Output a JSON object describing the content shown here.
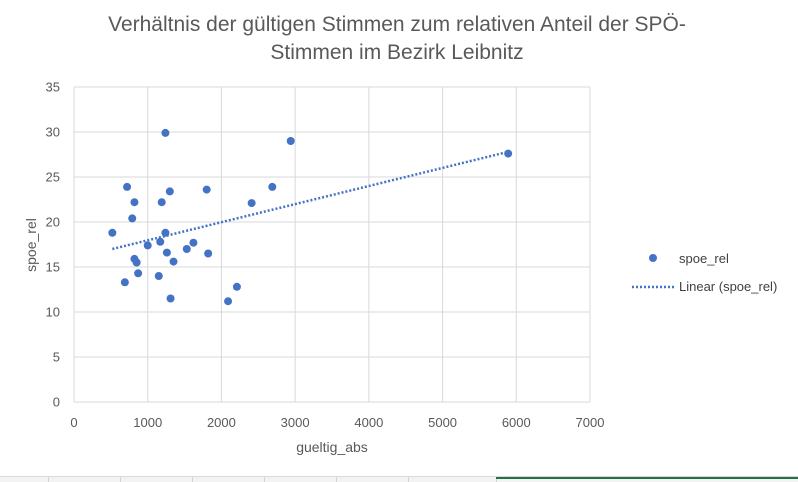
{
  "chart_data": {
    "type": "scatter",
    "title_lines": [
      "Verhältnis der gültigen Stimmen zum relativen Anteil der SPÖ-",
      "Stimmen im Bezirk Leibnitz"
    ],
    "xlabel": "gueltig_abs",
    "ylabel": "spoe_rel",
    "xlim": [
      0,
      7000
    ],
    "ylim": [
      0,
      35
    ],
    "x_ticks": [
      "0",
      "1000",
      "2000",
      "3000",
      "4000",
      "5000",
      "6000",
      "7000"
    ],
    "y_ticks": [
      "0",
      "5",
      "10",
      "15",
      "20",
      "25",
      "30",
      "35"
    ],
    "grid": true,
    "legend_position": "right",
    "series": [
      {
        "name": "spoe_rel",
        "color": "#4472c4",
        "marker": "circle",
        "points": [
          {
            "x": 520,
            "y": 18.8
          },
          {
            "x": 690,
            "y": 13.3
          },
          {
            "x": 720,
            "y": 23.9
          },
          {
            "x": 790,
            "y": 20.4
          },
          {
            "x": 820,
            "y": 22.2
          },
          {
            "x": 820,
            "y": 15.9
          },
          {
            "x": 850,
            "y": 15.5
          },
          {
            "x": 870,
            "y": 14.3
          },
          {
            "x": 1000,
            "y": 17.4
          },
          {
            "x": 1150,
            "y": 14.0
          },
          {
            "x": 1170,
            "y": 17.8
          },
          {
            "x": 1190,
            "y": 22.2
          },
          {
            "x": 1240,
            "y": 29.9
          },
          {
            "x": 1240,
            "y": 18.8
          },
          {
            "x": 1260,
            "y": 16.6
          },
          {
            "x": 1300,
            "y": 23.4
          },
          {
            "x": 1310,
            "y": 11.5
          },
          {
            "x": 1350,
            "y": 15.6
          },
          {
            "x": 1530,
            "y": 17.0
          },
          {
            "x": 1620,
            "y": 17.7
          },
          {
            "x": 1800,
            "y": 23.6
          },
          {
            "x": 1820,
            "y": 16.5
          },
          {
            "x": 2090,
            "y": 11.2
          },
          {
            "x": 2210,
            "y": 12.8
          },
          {
            "x": 2410,
            "y": 22.1
          },
          {
            "x": 2690,
            "y": 23.9
          },
          {
            "x": 2940,
            "y": 29.0
          },
          {
            "x": 5890,
            "y": 27.6
          }
        ]
      }
    ],
    "trendline": {
      "name": "Linear (spoe_rel)",
      "type": "linear",
      "color": "#4472c4",
      "x": [
        520,
        5890
      ],
      "y": [
        17.0,
        27.8
      ]
    }
  }
}
